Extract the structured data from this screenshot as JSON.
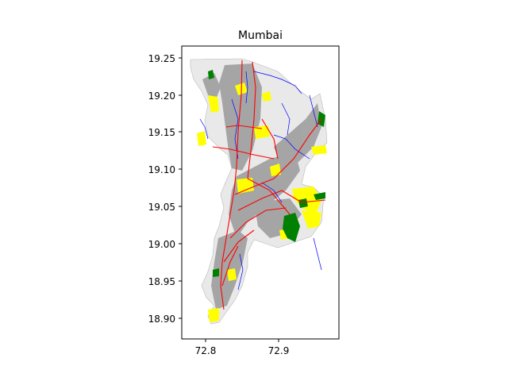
{
  "map": {
    "title": "Mumbai",
    "x_ticks": [
      "72.8",
      "72.9"
    ],
    "y_ticks": [
      "19.25",
      "19.20",
      "19.15",
      "19.10",
      "19.05",
      "19.00",
      "18.95",
      "18.90"
    ],
    "layers": [
      {
        "name": "buildings",
        "color": "#9a9a9a"
      },
      {
        "name": "roads",
        "color": "#ff0000"
      },
      {
        "name": "waterways",
        "color": "#0000ff"
      },
      {
        "name": "parks",
        "color": "#008000"
      },
      {
        "name": "landuse",
        "color": "#ffff00"
      }
    ]
  }
}
